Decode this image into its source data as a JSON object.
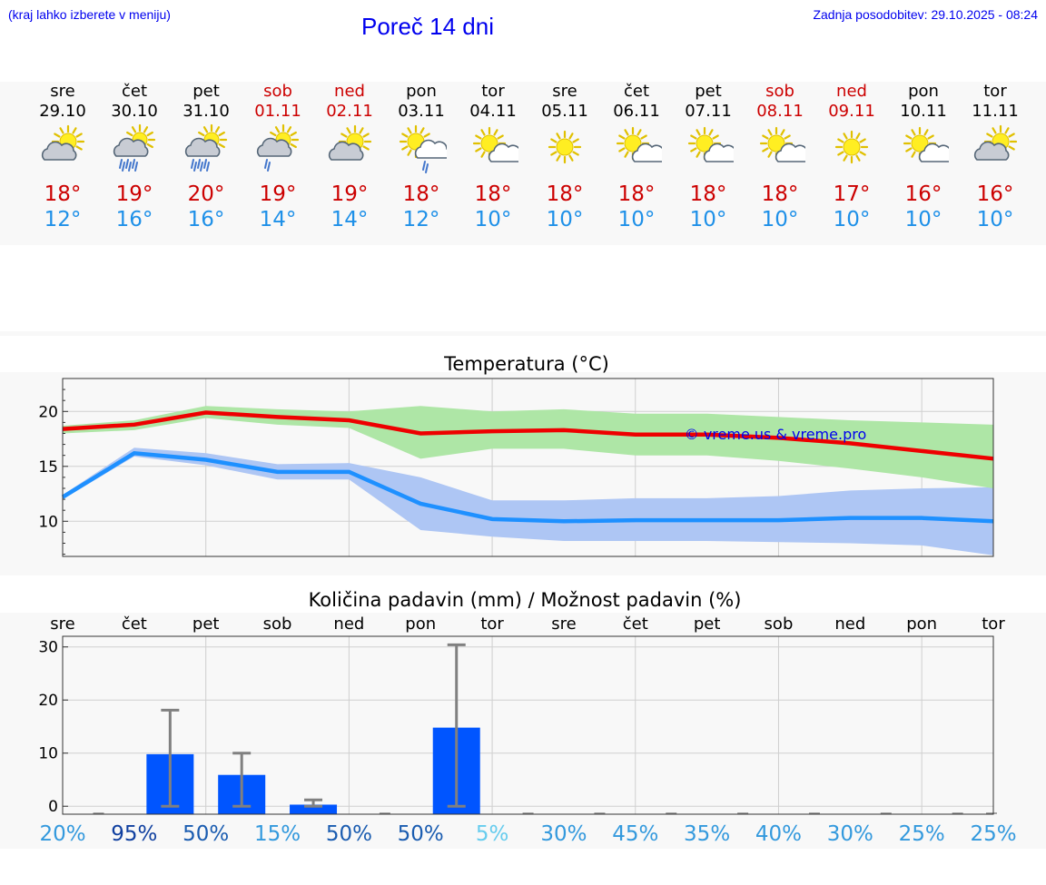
{
  "header": {
    "note": "(kraj lahko izberete v meniju)",
    "title": "Poreč 14 dni",
    "updated": "Zadnja posodobitev: 29.10.2025 - 08:24"
  },
  "days": [
    {
      "name": "sre",
      "date": "29.10",
      "weekend": false,
      "icon": "partly-cloudy-icon",
      "tmax": "18°",
      "tmin": "12°"
    },
    {
      "name": "čet",
      "date": "30.10",
      "weekend": false,
      "icon": "cloudy-rain-sun-icon",
      "tmax": "19°",
      "tmin": "16°"
    },
    {
      "name": "pet",
      "date": "31.10",
      "weekend": false,
      "icon": "cloudy-rain-sun-icon",
      "tmax": "20°",
      "tmin": "16°"
    },
    {
      "name": "sob",
      "date": "01.11",
      "weekend": true,
      "icon": "cloudy-light-rain-sun-icon",
      "tmax": "19°",
      "tmin": "14°"
    },
    {
      "name": "ned",
      "date": "02.11",
      "weekend": true,
      "icon": "partly-cloudy-icon",
      "tmax": "19°",
      "tmin": "14°"
    },
    {
      "name": "pon",
      "date": "03.11",
      "weekend": false,
      "icon": "sun-cloud-rain-icon",
      "tmax": "18°",
      "tmin": "12°"
    },
    {
      "name": "tor",
      "date": "04.11",
      "weekend": false,
      "icon": "mostly-sunny-icon",
      "tmax": "18°",
      "tmin": "10°"
    },
    {
      "name": "sre",
      "date": "05.11",
      "weekend": false,
      "icon": "sunny-icon",
      "tmax": "18°",
      "tmin": "10°"
    },
    {
      "name": "čet",
      "date": "06.11",
      "weekend": false,
      "icon": "mostly-sunny-icon",
      "tmax": "18°",
      "tmin": "10°"
    },
    {
      "name": "pet",
      "date": "07.11",
      "weekend": false,
      "icon": "mostly-sunny-icon",
      "tmax": "18°",
      "tmin": "10°"
    },
    {
      "name": "sob",
      "date": "08.11",
      "weekend": true,
      "icon": "mostly-sunny-icon",
      "tmax": "18°",
      "tmin": "10°"
    },
    {
      "name": "ned",
      "date": "09.11",
      "weekend": true,
      "icon": "sunny-icon",
      "tmax": "17°",
      "tmin": "10°"
    },
    {
      "name": "pon",
      "date": "10.11",
      "weekend": false,
      "icon": "mostly-sunny-icon",
      "tmax": "16°",
      "tmin": "10°"
    },
    {
      "name": "tor",
      "date": "11.11",
      "weekend": false,
      "icon": "partly-cloudy-icon",
      "tmax": "16°",
      "tmin": "10°"
    }
  ],
  "colors": {
    "max_line": "#ee0000",
    "max_band": "#aee6a6",
    "min_line": "#1e90ff",
    "min_band": "#aec6f4",
    "bar": "#0055ff",
    "error_bar": "#808080",
    "watermark": "#0000ee"
  },
  "watermark": "© vreme.us & vreme.pro",
  "chart_data": [
    {
      "type": "line",
      "title": "Temperatura (°C)",
      "x": [
        "29.10",
        "30.10",
        "31.10",
        "01.11",
        "02.11",
        "03.11",
        "04.11",
        "05.11",
        "06.11",
        "07.11",
        "08.11",
        "09.11",
        "10.11",
        "11.11"
      ],
      "ylim": [
        6.8,
        23
      ],
      "yticks": [
        10,
        15,
        20
      ],
      "series": [
        {
          "name": "max",
          "values": [
            18.4,
            18.8,
            19.9,
            19.5,
            19.2,
            18.0,
            18.2,
            18.3,
            17.9,
            17.9,
            17.6,
            17.1,
            16.4,
            15.7
          ],
          "band_low": [
            18.0,
            18.3,
            19.4,
            18.8,
            18.5,
            15.7,
            16.6,
            16.6,
            16.0,
            16.0,
            15.5,
            14.8,
            14.0,
            13.0
          ],
          "band_high": [
            18.7,
            19.2,
            20.5,
            20.2,
            20.0,
            20.5,
            20.0,
            20.2,
            19.8,
            19.8,
            19.5,
            19.2,
            19.0,
            18.8
          ]
        },
        {
          "name": "min",
          "values": [
            12.2,
            16.2,
            15.6,
            14.5,
            14.5,
            11.6,
            10.2,
            10.0,
            10.1,
            10.1,
            10.1,
            10.3,
            10.3,
            10.0
          ],
          "band_low": [
            12.0,
            15.9,
            15.1,
            13.8,
            13.8,
            9.2,
            8.6,
            8.2,
            8.2,
            8.2,
            8.1,
            8.0,
            7.8,
            6.9
          ],
          "band_high": [
            12.4,
            16.7,
            16.2,
            15.2,
            15.3,
            14.0,
            11.9,
            11.9,
            12.1,
            12.1,
            12.3,
            12.8,
            13.0,
            13.1
          ]
        }
      ]
    },
    {
      "type": "bar",
      "title": "Količina padavin (mm) / Možnost padavin (%)",
      "categories": [
        "sre",
        "čet",
        "pet",
        "sob",
        "ned",
        "pon",
        "tor",
        "sre",
        "čet",
        "pet",
        "sob",
        "ned",
        "pon",
        "tor"
      ],
      "values": [
        0,
        9.8,
        5.9,
        0.3,
        0,
        14.8,
        0,
        0,
        0,
        0,
        0,
        0,
        0,
        0
      ],
      "err_low": [
        0,
        0,
        0,
        0,
        0,
        0,
        0,
        0,
        0,
        0,
        0,
        0,
        0,
        0
      ],
      "err_high": [
        0,
        18.1,
        10.0,
        1.2,
        0,
        30.4,
        0,
        0,
        0,
        0,
        0,
        0,
        0,
        0
      ],
      "probability": [
        "20%",
        "95%",
        "50%",
        "15%",
        "50%",
        "50%",
        "5%",
        "30%",
        "45%",
        "35%",
        "40%",
        "30%",
        "25%",
        "25%"
      ],
      "ylim": [
        -1.5,
        32
      ],
      "yticks": [
        0,
        10,
        20,
        30
      ]
    }
  ]
}
